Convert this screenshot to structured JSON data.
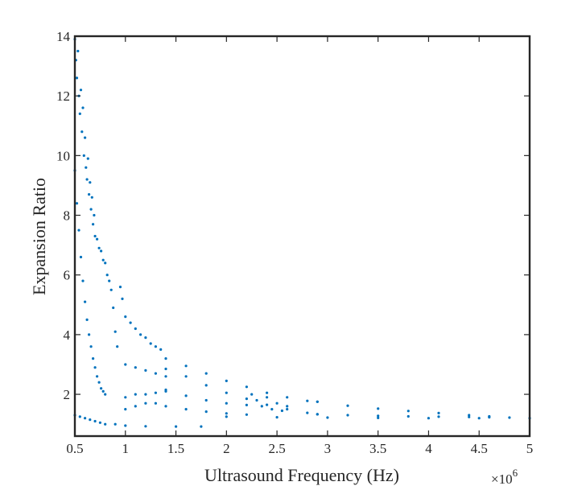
{
  "chart_data": {
    "type": "scatter",
    "title": "",
    "xlabel": "Ultrasound Frequency (Hz)",
    "ylabel": "Expansion Ratio",
    "x_exponent_label": "×10",
    "x_exponent_power": "6",
    "x_scale_factor": 1000000,
    "xlim": [
      500000,
      5000000
    ],
    "ylim": [
      0.6,
      14
    ],
    "x_ticks": [
      500000,
      1000000,
      1500000,
      2000000,
      2500000,
      3000000,
      3500000,
      4000000,
      4500000,
      5000000
    ],
    "x_tick_labels": [
      "0.5",
      "1",
      "1.5",
      "2",
      "2.5",
      "3",
      "3.5",
      "4",
      "4.5",
      "5"
    ],
    "y_ticks": [
      2,
      4,
      6,
      8,
      10,
      12,
      14
    ],
    "y_tick_labels": [
      "2",
      "4",
      "6",
      "8",
      "10",
      "12",
      "14"
    ],
    "grid": false,
    "marker_color": "#0072BD",
    "series": [
      {
        "points": [
          [
            500000,
            13.9
          ],
          [
            510000,
            13.2
          ],
          [
            520000,
            12.6
          ],
          [
            530000,
            13.5
          ],
          [
            540000,
            12.0
          ],
          [
            550000,
            11.4
          ],
          [
            560000,
            12.2
          ],
          [
            570000,
            10.8
          ],
          [
            580000,
            11.6
          ],
          [
            590000,
            10.0
          ],
          [
            600000,
            10.6
          ],
          [
            610000,
            9.6
          ],
          [
            620000,
            9.2
          ],
          [
            630000,
            9.9
          ],
          [
            640000,
            8.7
          ],
          [
            650000,
            9.1
          ],
          [
            660000,
            8.2
          ],
          [
            670000,
            8.6
          ],
          [
            680000,
            7.7
          ],
          [
            690000,
            8.0
          ],
          [
            700000,
            7.3
          ],
          [
            720000,
            7.2
          ],
          [
            740000,
            6.9
          ],
          [
            760000,
            6.8
          ],
          [
            780000,
            6.5
          ],
          [
            800000,
            6.4
          ],
          [
            820000,
            6.0
          ],
          [
            840000,
            5.8
          ],
          [
            860000,
            5.5
          ],
          [
            880000,
            4.9
          ],
          [
            900000,
            4.1
          ],
          [
            920000,
            3.6
          ],
          [
            500000,
            9.5
          ],
          [
            520000,
            8.4
          ],
          [
            540000,
            7.5
          ],
          [
            560000,
            6.6
          ],
          [
            580000,
            5.8
          ],
          [
            600000,
            5.1
          ],
          [
            620000,
            4.5
          ],
          [
            640000,
            4.0
          ],
          [
            660000,
            3.6
          ],
          [
            680000,
            3.2
          ],
          [
            700000,
            2.9
          ],
          [
            720000,
            2.6
          ],
          [
            740000,
            2.4
          ],
          [
            760000,
            2.2
          ],
          [
            780000,
            2.1
          ],
          [
            800000,
            2.0
          ],
          [
            500000,
            1.3
          ],
          [
            550000,
            1.25
          ],
          [
            600000,
            1.2
          ],
          [
            650000,
            1.15
          ],
          [
            700000,
            1.1
          ],
          [
            750000,
            1.05
          ],
          [
            800000,
            1.0
          ],
          [
            900000,
            1.0
          ],
          [
            1000000,
            0.95
          ],
          [
            1200000,
            0.93
          ],
          [
            1500000,
            0.92
          ],
          [
            1750000,
            0.92
          ],
          [
            950000,
            5.6
          ],
          [
            970000,
            5.2
          ],
          [
            1000000,
            4.6
          ],
          [
            1050000,
            4.4
          ],
          [
            1100000,
            4.2
          ],
          [
            1150000,
            4.0
          ],
          [
            1200000,
            3.9
          ],
          [
            1250000,
            3.7
          ],
          [
            1300000,
            3.6
          ],
          [
            1350000,
            3.5
          ],
          [
            1000000,
            1.9
          ],
          [
            1100000,
            2.0
          ],
          [
            1200000,
            2.0
          ],
          [
            1300000,
            2.05
          ],
          [
            1400000,
            2.1
          ],
          [
            1000000,
            3.0
          ],
          [
            1100000,
            2.9
          ],
          [
            1200000,
            2.8
          ],
          [
            1300000,
            2.7
          ],
          [
            1400000,
            2.6
          ],
          [
            1000000,
            1.5
          ],
          [
            1100000,
            1.6
          ],
          [
            1200000,
            1.7
          ],
          [
            1300000,
            1.7
          ],
          [
            1400000,
            3.2
          ],
          [
            1600000,
            2.95
          ],
          [
            1800000,
            2.7
          ],
          [
            2000000,
            2.45
          ],
          [
            2200000,
            2.25
          ],
          [
            2400000,
            2.05
          ],
          [
            2600000,
            1.9
          ],
          [
            2800000,
            1.78
          ],
          [
            2900000,
            1.75
          ],
          [
            1400000,
            2.85
          ],
          [
            1600000,
            2.6
          ],
          [
            1800000,
            2.3
          ],
          [
            2000000,
            2.05
          ],
          [
            2200000,
            1.85
          ],
          [
            2400000,
            1.65
          ],
          [
            2600000,
            1.5
          ],
          [
            2800000,
            1.38
          ],
          [
            2900000,
            1.33
          ],
          [
            1400000,
            2.15
          ],
          [
            1600000,
            1.95
          ],
          [
            1800000,
            1.8
          ],
          [
            2000000,
            1.7
          ],
          [
            2200000,
            1.64
          ],
          [
            1400000,
            1.6
          ],
          [
            1600000,
            1.5
          ],
          [
            1800000,
            1.42
          ],
          [
            2000000,
            1.36
          ],
          [
            2200000,
            1.32
          ],
          [
            2250000,
            2.0
          ],
          [
            2300000,
            1.8
          ],
          [
            2350000,
            1.6
          ],
          [
            2400000,
            1.9
          ],
          [
            2450000,
            1.5
          ],
          [
            2500000,
            1.7
          ],
          [
            2550000,
            1.45
          ],
          [
            2600000,
            1.6
          ],
          [
            2900000,
            1.75
          ],
          [
            3200000,
            1.62
          ],
          [
            3500000,
            1.52
          ],
          [
            3800000,
            1.44
          ],
          [
            4100000,
            1.37
          ],
          [
            4400000,
            1.3
          ],
          [
            4600000,
            1.26
          ],
          [
            2900000,
            1.33
          ],
          [
            3200000,
            1.3
          ],
          [
            3500000,
            1.28
          ],
          [
            3800000,
            1.26
          ],
          [
            4100000,
            1.25
          ],
          [
            4400000,
            1.24
          ],
          [
            4600000,
            1.23
          ],
          [
            4800000,
            1.22
          ],
          [
            5000000,
            1.2
          ],
          [
            2000000,
            1.25
          ],
          [
            2500000,
            1.23
          ],
          [
            3000000,
            1.22
          ],
          [
            3500000,
            1.21
          ],
          [
            4000000,
            1.2
          ],
          [
            4500000,
            1.2
          ]
        ]
      }
    ]
  }
}
